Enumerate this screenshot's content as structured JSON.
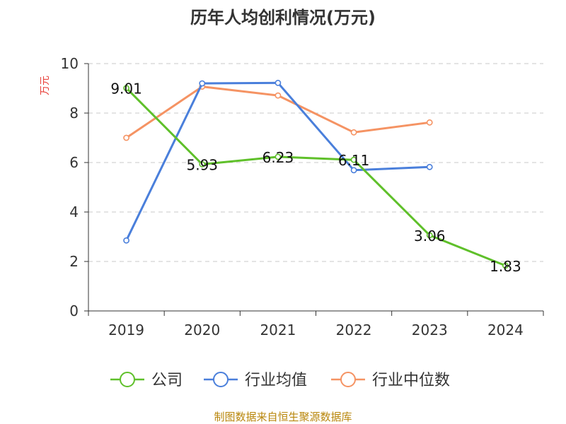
{
  "colors": {
    "公司": "#5fc02a",
    "行业均值": "#4a7fdb",
    "行业中位数": "#f59363",
    "ylabel": "#e8403a",
    "source": "#b8860b",
    "grid": "#c8c8c8"
  },
  "chart_data": {
    "type": "line",
    "title": "历年人均创利情况(万元)",
    "ylabel": "万元",
    "xlabel": "",
    "ylim": [
      0,
      10
    ],
    "yticks": [
      0,
      2,
      4,
      6,
      8,
      10
    ],
    "categories": [
      "2019",
      "2020",
      "2021",
      "2022",
      "2023",
      "2024"
    ],
    "grid": "horizontal dashed",
    "legend_position": "bottom",
    "series": [
      {
        "name": "公司",
        "values": [
          9.01,
          5.93,
          6.23,
          6.11,
          3.06,
          1.83
        ],
        "data_labels": [
          "9.01",
          "5.93",
          "6.23",
          "6.11",
          "3.06",
          "1.83"
        ]
      },
      {
        "name": "行业均值",
        "values": [
          2.85,
          9.2,
          9.22,
          5.69,
          5.82,
          null
        ]
      },
      {
        "name": "行业中位数",
        "values": [
          7.0,
          9.07,
          8.71,
          7.22,
          7.62,
          null
        ]
      }
    ]
  },
  "source_text": "制图数据来自恒生聚源数据库"
}
